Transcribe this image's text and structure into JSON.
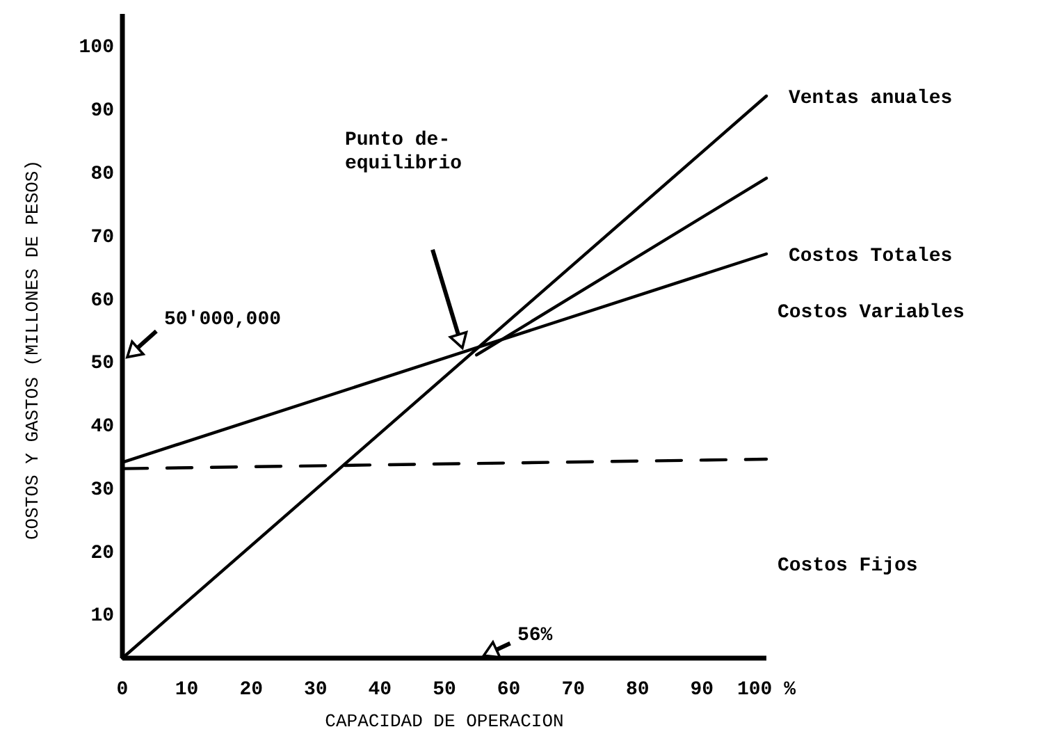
{
  "chart_data": {
    "type": "line",
    "xlabel": "CAPACIDAD DE OPERACION",
    "ylabel": "COSTOS Y GASTOS (MILLONES DE PESOS)",
    "xlim": [
      0,
      100
    ],
    "ylim": [
      3,
      105
    ],
    "xticks": [
      0,
      10,
      20,
      30,
      40,
      50,
      60,
      70,
      80,
      90,
      {
        "value": 100,
        "label": "100 %"
      }
    ],
    "yticks": [
      10,
      20,
      30,
      40,
      50,
      60,
      70,
      80,
      90,
      100
    ],
    "grid": false,
    "tick_labels": "xy",
    "series": [
      {
        "name": "Ventas anuales",
        "color": "#000000",
        "x": [
          0,
          100
        ],
        "values": [
          3,
          92
        ]
      },
      {
        "name": "Costos Totales",
        "color": "#000000",
        "x": [
          0,
          100
        ],
        "values": [
          34,
          67
        ]
      },
      {
        "color": "#000000",
        "x": [
          55,
          100
        ],
        "values": [
          51,
          79
        ]
      },
      {
        "color": "#000000",
        "x": [
          0,
          100
        ],
        "values": [
          33,
          34.5
        ],
        "line_style": "dashed"
      }
    ],
    "annotations": [
      "50'000,000",
      "Punto de-\nequilibrio",
      "56%",
      "Costos Variables",
      "Costos Fijos"
    ]
  }
}
